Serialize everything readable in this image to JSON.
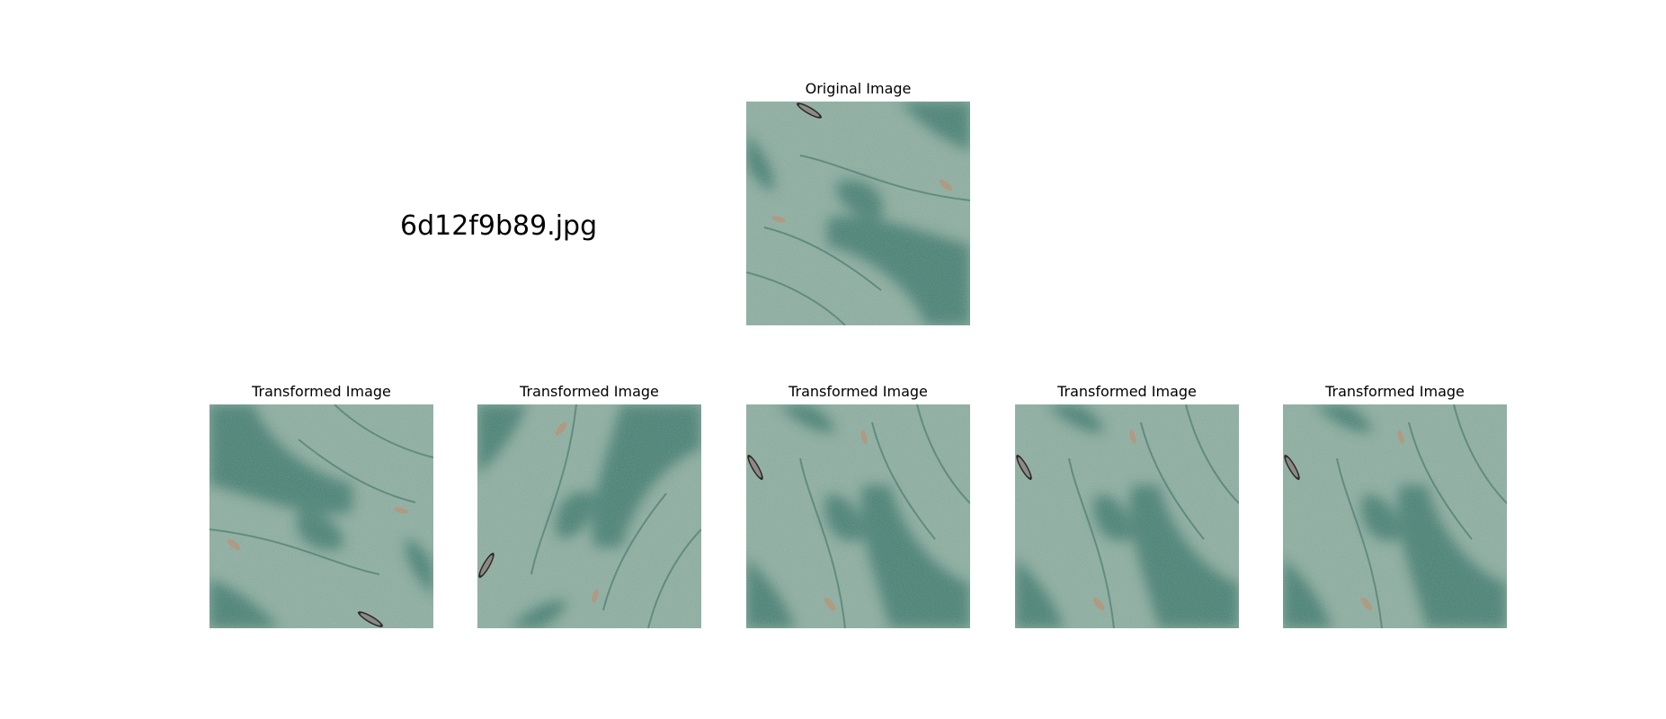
{
  "file_name": "6d12f9b89.jpg",
  "original": {
    "title": "Original Image"
  },
  "transformed": [
    {
      "title": "Transformed Image"
    },
    {
      "title": "Transformed Image"
    },
    {
      "title": "Transformed Image"
    },
    {
      "title": "Transformed Image"
    },
    {
      "title": "Transformed Image"
    }
  ],
  "colors": {
    "water_light": "#87a79a",
    "water_dark": "#1f5e52",
    "boat": "#b09a82"
  }
}
